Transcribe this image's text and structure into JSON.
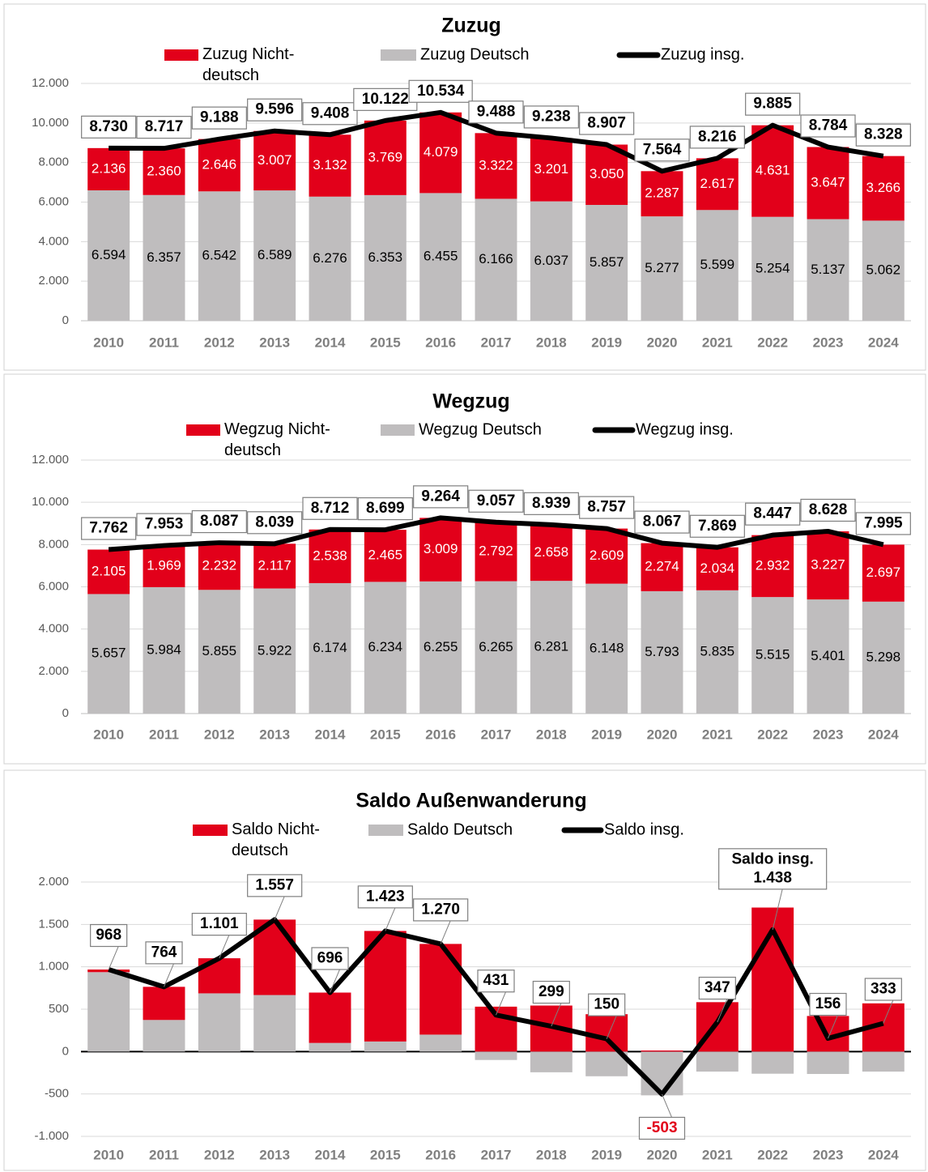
{
  "chart_data": [
    {
      "type": "stacked_bar_line",
      "title": "Zuzug",
      "categories": [
        "2010",
        "2011",
        "2012",
        "2013",
        "2014",
        "2015",
        "2016",
        "2017",
        "2018",
        "2019",
        "2020",
        "2021",
        "2022",
        "2023",
        "2024"
      ],
      "ylim": [
        0,
        12000
      ],
      "yticks": [
        0,
        {
          "value": 2000,
          "label": "2.000"
        },
        {
          "value": 4000,
          "label": "4.000"
        },
        {
          "value": 6000,
          "label": "6.000"
        },
        {
          "value": 8000,
          "label": "8.000"
        },
        {
          "value": 10000,
          "label": "10.000"
        },
        {
          "value": 12000,
          "label": "12.000"
        }
      ],
      "grid": true,
      "series": [
        {
          "name": "Zuzug Nicht-deutsch",
          "color": "#e2001a",
          "values": [
            2136,
            2360,
            2646,
            3007,
            3132,
            3769,
            4079,
            3322,
            3201,
            3050,
            2287,
            2617,
            4631,
            3647,
            3266
          ],
          "value_labels": [
            "2.136",
            "2.360",
            "2.646",
            "3.007",
            "3.132",
            "3.769",
            "4.079",
            "3.322",
            "3.201",
            "3.050",
            "2.287",
            "2.617",
            "4.631",
            "3.647",
            "3.266"
          ]
        },
        {
          "name": "Zuzug Deutsch",
          "color": "#bfbdbe",
          "values": [
            6594,
            6357,
            6542,
            6589,
            6276,
            6353,
            6455,
            6166,
            6037,
            5857,
            5277,
            5599,
            5254,
            5137,
            5062
          ],
          "value_labels": [
            "6.594",
            "6.357",
            "6.542",
            "6.589",
            "6.276",
            "6.353",
            "6.455",
            "6.166",
            "6.037",
            "5.857",
            "5.277",
            "5.599",
            "5.254",
            "5.137",
            "5.062"
          ]
        },
        {
          "name": "Zuzug insg.",
          "color": "#000000",
          "type": "line",
          "values": [
            8730,
            8717,
            9188,
            9596,
            9408,
            10122,
            10534,
            9488,
            9238,
            8907,
            7564,
            8216,
            9885,
            8784,
            8328
          ],
          "value_labels": [
            "8.730",
            "8.717",
            "9.188",
            "9.596",
            "9.408",
            "10.122",
            "10.534",
            "9.488",
            "9.238",
            "8.907",
            "7.564",
            "8.216",
            "9.885",
            "8.784",
            "8.328"
          ]
        }
      ]
    },
    {
      "type": "stacked_bar_line",
      "title": "Wegzug",
      "categories": [
        "2010",
        "2011",
        "2012",
        "2013",
        "2014",
        "2015",
        "2016",
        "2017",
        "2018",
        "2019",
        "2020",
        "2021",
        "2022",
        "2023",
        "2024"
      ],
      "ylim": [
        0,
        12000
      ],
      "yticks": [
        0,
        {
          "value": 2000,
          "label": "2.000"
        },
        {
          "value": 4000,
          "label": "4.000"
        },
        {
          "value": 6000,
          "label": "6.000"
        },
        {
          "value": 8000,
          "label": "8.000"
        },
        {
          "value": 10000,
          "label": "10.000"
        },
        {
          "value": 12000,
          "label": "12.000"
        }
      ],
      "grid": true,
      "series": [
        {
          "name": "Wegzug Nicht-deutsch",
          "color": "#e2001a",
          "values": [
            2105,
            1969,
            2232,
            2117,
            2538,
            2465,
            3009,
            2792,
            2658,
            2609,
            2274,
            2034,
            2932,
            3227,
            2697
          ],
          "value_labels": [
            "2.105",
            "1.969",
            "2.232",
            "2.117",
            "2.538",
            "2.465",
            "3.009",
            "2.792",
            "2.658",
            "2.609",
            "2.274",
            "2.034",
            "2.932",
            "3.227",
            "2.697"
          ]
        },
        {
          "name": "Wegzug Deutsch",
          "color": "#bfbdbe",
          "values": [
            5657,
            5984,
            5855,
            5922,
            6174,
            6234,
            6255,
            6265,
            6281,
            6148,
            5793,
            5835,
            5515,
            5401,
            5298
          ],
          "value_labels": [
            "5.657",
            "5.984",
            "5.855",
            "5.922",
            "6.174",
            "6.234",
            "6.255",
            "6.265",
            "6.281",
            "6.148",
            "5.793",
            "5.835",
            "5.515",
            "5.401",
            "5.298"
          ]
        },
        {
          "name": "Wegzug insg.",
          "color": "#000000",
          "type": "line",
          "values": [
            7762,
            7953,
            8087,
            8039,
            8712,
            8699,
            9264,
            9057,
            8939,
            8757,
            8067,
            7869,
            8447,
            8628,
            7995
          ],
          "value_labels": [
            "7.762",
            "7.953",
            "8.087",
            "8.039",
            "8.712",
            "8.699",
            "9.264",
            "9.057",
            "8.939",
            "8.757",
            "8.067",
            "7.869",
            "8.447",
            "8.628",
            "7.995"
          ]
        }
      ]
    },
    {
      "type": "stacked_bar_line",
      "title": "Saldo Außenwanderung",
      "categories": [
        "2010",
        "2011",
        "2012",
        "2013",
        "2014",
        "2015",
        "2016",
        "2017",
        "2018",
        "2019",
        "2020",
        "2021",
        "2022",
        "2023",
        "2024"
      ],
      "ylim": [
        -1000,
        2000
      ],
      "yticks": [
        {
          "value": -1000,
          "label": "-1.000"
        },
        -500,
        0,
        500,
        {
          "value": 1000,
          "label": "1.000"
        },
        {
          "value": 1500,
          "label": "1.500"
        },
        {
          "value": 2000,
          "label": "2.000"
        }
      ],
      "grid": true,
      "series": [
        {
          "name": "Saldo Nicht-deutsch",
          "color": "#e2001a",
          "values": [
            31,
            391,
            414,
            890,
            594,
            1304,
            1070,
            530,
            543,
            441,
            13,
            583,
            1699,
            420,
            569
          ]
        },
        {
          "name": "Saldo Deutsch",
          "color": "#bfbdbe",
          "values": [
            937,
            373,
            687,
            667,
            102,
            119,
            200,
            -99,
            -244,
            -291,
            -516,
            -236,
            -261,
            -264,
            -236
          ]
        },
        {
          "name": "Saldo insg.",
          "color": "#000000",
          "type": "line",
          "values": [
            968,
            764,
            1101,
            1557,
            696,
            1423,
            1270,
            431,
            299,
            150,
            -503,
            347,
            1438,
            156,
            333
          ],
          "value_labels": [
            "968",
            "764",
            "1.101",
            "1.557",
            "696",
            "1.423",
            "1.270",
            "431",
            "299",
            "150",
            "-503",
            "347",
            "Saldo insg.\n1.438",
            "156",
            "333"
          ]
        }
      ]
    }
  ]
}
